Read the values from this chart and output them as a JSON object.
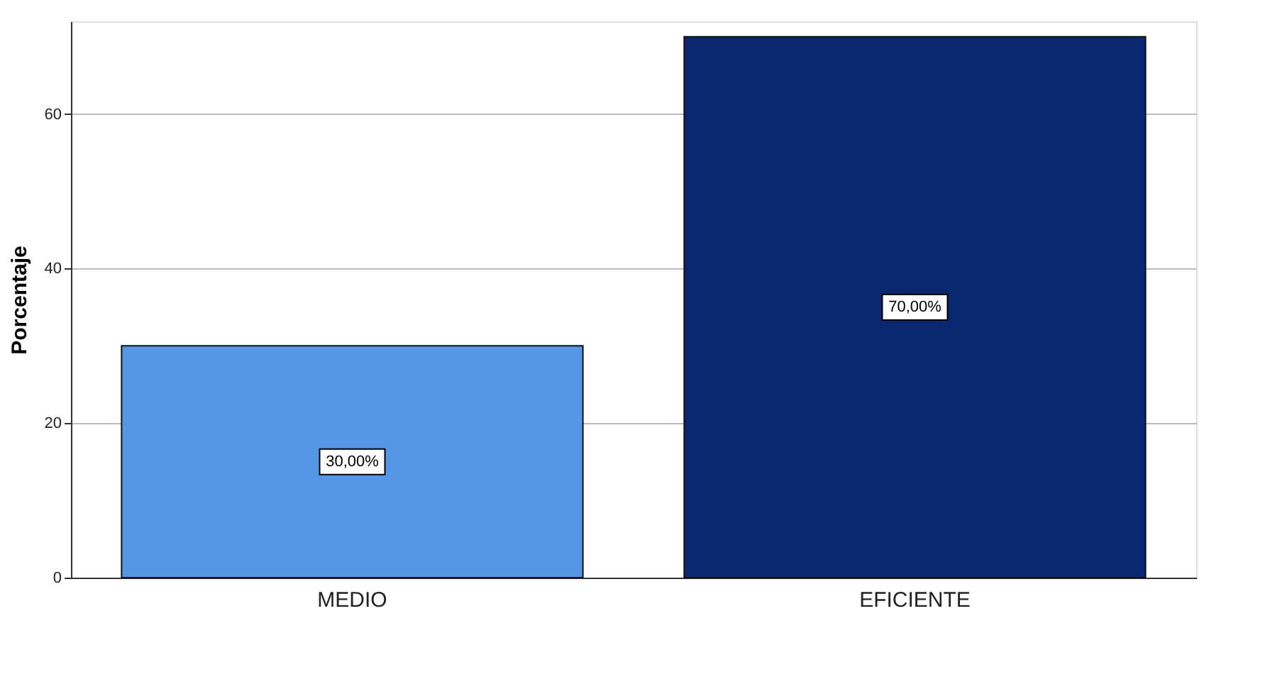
{
  "chart_data": {
    "type": "bar",
    "ylabel": "Porcentaje",
    "categories": [
      "MEDIO",
      "EFICIENTE"
    ],
    "values": [
      30,
      70
    ],
    "colors": [
      "#5596e5",
      "#0a2870"
    ],
    "value_labels": [
      "30,00%",
      "70,00%"
    ],
    "ylim": [
      0,
      72
    ],
    "yticks": [
      0,
      20,
      40,
      60
    ],
    "grid": "y"
  }
}
